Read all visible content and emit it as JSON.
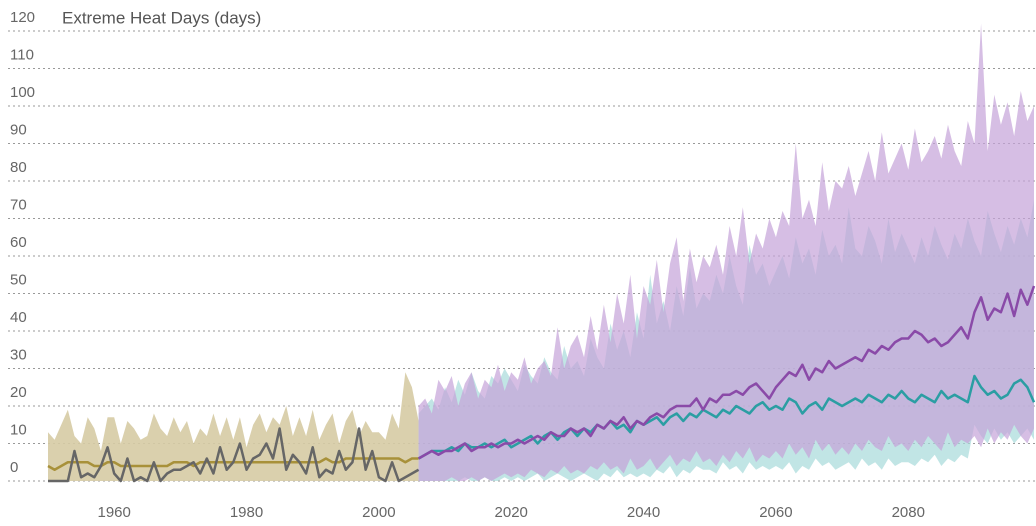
{
  "chart_data": {
    "type": "line",
    "title": "Extreme Heat Days (days)",
    "xlim": [
      1950,
      2099
    ],
    "xticks": [
      1960,
      1980,
      2000,
      2020,
      2040,
      2060,
      2080
    ],
    "ylim": [
      0,
      120
    ],
    "yticks": [
      0,
      10,
      20,
      30,
      40,
      50,
      60,
      70,
      80,
      90,
      100,
      110,
      120
    ],
    "grid": true,
    "series": [
      {
        "color": "#a8913a",
        "band_color": "#d6cba4",
        "x": [
          1950,
          1951,
          1952,
          1953,
          1954,
          1955,
          1956,
          1957,
          1958,
          1959,
          1960,
          1961,
          1962,
          1963,
          1964,
          1965,
          1966,
          1967,
          1968,
          1969,
          1970,
          1971,
          1972,
          1973,
          1974,
          1975,
          1976,
          1977,
          1978,
          1979,
          1980,
          1981,
          1982,
          1983,
          1984,
          1985,
          1986,
          1987,
          1988,
          1989,
          1990,
          1991,
          1992,
          1993,
          1994,
          1995,
          1996,
          1997,
          1998,
          1999,
          2000,
          2001,
          2002,
          2003,
          2004,
          2005,
          2006
        ],
        "values": [
          4,
          3,
          4,
          5,
          5,
          5,
          5,
          4,
          4,
          5,
          5,
          4,
          4,
          4,
          4,
          4,
          4,
          4,
          4,
          5,
          5,
          5,
          4,
          5,
          5,
          5,
          5,
          5,
          5,
          5,
          5,
          5,
          5,
          5,
          5,
          5,
          5,
          5,
          5,
          5,
          5,
          5,
          6,
          5,
          5,
          6,
          6,
          6,
          6,
          6,
          6,
          6,
          6,
          6,
          5,
          6,
          6
        ],
        "low": [
          0,
          0,
          0,
          0,
          0,
          0,
          0,
          0,
          0,
          0,
          0,
          0,
          0,
          0,
          0,
          0,
          0,
          0,
          0,
          0,
          0,
          0,
          0,
          0,
          0,
          0,
          0,
          0,
          0,
          0,
          0,
          0,
          0,
          0,
          0,
          0,
          0,
          0,
          0,
          0,
          0,
          0,
          0,
          0,
          0,
          0,
          0,
          0,
          0,
          0,
          0,
          0,
          0,
          0,
          0,
          0,
          0
        ],
        "high": [
          13,
          11,
          15,
          19,
          12,
          10,
          17,
          14,
          8,
          17,
          17,
          10,
          16,
          14,
          11,
          12,
          18,
          14,
          12,
          17,
          13,
          16,
          10,
          14,
          12,
          18,
          12,
          17,
          11,
          17,
          9,
          15,
          18,
          13,
          17,
          15,
          20,
          12,
          17,
          12,
          19,
          11,
          15,
          18,
          10,
          16,
          19,
          12,
          16,
          13,
          13,
          11,
          18,
          14,
          29,
          25,
          16
        ]
      },
      {
        "color": "#2b9ea3",
        "band_color": "#a6dada",
        "x": [
          2006,
          2007,
          2008,
          2009,
          2010,
          2011,
          2012,
          2013,
          2014,
          2015,
          2016,
          2017,
          2018,
          2019,
          2020,
          2021,
          2022,
          2023,
          2024,
          2025,
          2026,
          2027,
          2028,
          2029,
          2030,
          2031,
          2032,
          2033,
          2034,
          2035,
          2036,
          2037,
          2038,
          2039,
          2040,
          2041,
          2042,
          2043,
          2044,
          2045,
          2046,
          2047,
          2048,
          2049,
          2050,
          2051,
          2052,
          2053,
          2054,
          2055,
          2056,
          2057,
          2058,
          2059,
          2060,
          2061,
          2062,
          2063,
          2064,
          2065,
          2066,
          2067,
          2068,
          2069,
          2070,
          2071,
          2072,
          2073,
          2074,
          2075,
          2076,
          2077,
          2078,
          2079,
          2080,
          2081,
          2082,
          2083,
          2084,
          2085,
          2086,
          2087,
          2088,
          2089,
          2090,
          2091,
          2092,
          2093,
          2094,
          2095,
          2096,
          2097,
          2098,
          2099
        ],
        "values": [
          6,
          7,
          8,
          8,
          8,
          9,
          8,
          10,
          9,
          9,
          10,
          9,
          10,
          11,
          9,
          10,
          11,
          12,
          10,
          12,
          13,
          11,
          13,
          14,
          12,
          14,
          13,
          15,
          14,
          16,
          14,
          15,
          13,
          16,
          15,
          16,
          17,
          15,
          17,
          18,
          16,
          18,
          17,
          19,
          18,
          17,
          19,
          18,
          20,
          19,
          18,
          20,
          21,
          19,
          20,
          19,
          22,
          21,
          18,
          20,
          21,
          19,
          22,
          21,
          20,
          21,
          22,
          21,
          23,
          22,
          21,
          23,
          22,
          24,
          22,
          21,
          23,
          22,
          21,
          24,
          22,
          23,
          22,
          21,
          28,
          25,
          23,
          24,
          22,
          23,
          26,
          27,
          25,
          21
        ],
        "low": [
          0,
          0,
          0,
          0,
          0,
          0,
          0,
          1,
          0,
          0,
          1,
          0,
          0,
          1,
          0,
          1,
          0,
          1,
          2,
          0,
          1,
          2,
          1,
          0,
          1,
          2,
          1,
          0,
          2,
          1,
          3,
          1,
          2,
          1,
          2,
          1,
          3,
          2,
          4,
          1,
          3,
          2,
          4,
          3,
          3,
          2,
          5,
          3,
          4,
          2,
          5,
          3,
          4,
          3,
          4,
          3,
          5,
          2,
          4,
          3,
          6,
          4,
          5,
          3,
          4,
          5,
          3,
          6,
          4,
          5,
          3,
          6,
          4,
          5,
          5,
          4,
          6,
          5,
          7,
          4,
          6,
          5,
          7,
          6,
          15,
          12,
          10,
          14,
          11,
          13,
          10,
          12,
          14,
          11
        ],
        "high": [
          18,
          20,
          22,
          19,
          25,
          21,
          27,
          23,
          29,
          24,
          22,
          28,
          26,
          30,
          27,
          24,
          31,
          28,
          26,
          33,
          29,
          27,
          36,
          30,
          32,
          28,
          38,
          33,
          30,
          42,
          35,
          40,
          33,
          45,
          38,
          55,
          42,
          48,
          40,
          52,
          44,
          57,
          46,
          50,
          48,
          55,
          50,
          60,
          52,
          47,
          63,
          55,
          58,
          52,
          56,
          60,
          54,
          65,
          58,
          62,
          55,
          67,
          60,
          63,
          58,
          73,
          62,
          60,
          68,
          64,
          58,
          70,
          61,
          66,
          62,
          58,
          65,
          60,
          68,
          63,
          59,
          66,
          62,
          70,
          64,
          60,
          72,
          66,
          61,
          68,
          63,
          70,
          65,
          75
        ]
      },
      {
        "color": "#8a4aa8",
        "band_color": "#c4a3d8",
        "x": [
          2006,
          2007,
          2008,
          2009,
          2010,
          2011,
          2012,
          2013,
          2014,
          2015,
          2016,
          2017,
          2018,
          2019,
          2020,
          2021,
          2022,
          2023,
          2024,
          2025,
          2026,
          2027,
          2028,
          2029,
          2030,
          2031,
          2032,
          2033,
          2034,
          2035,
          2036,
          2037,
          2038,
          2039,
          2040,
          2041,
          2042,
          2043,
          2044,
          2045,
          2046,
          2047,
          2048,
          2049,
          2050,
          2051,
          2052,
          2053,
          2054,
          2055,
          2056,
          2057,
          2058,
          2059,
          2060,
          2061,
          2062,
          2063,
          2064,
          2065,
          2066,
          2067,
          2068,
          2069,
          2070,
          2071,
          2072,
          2073,
          2074,
          2075,
          2076,
          2077,
          2078,
          2079,
          2080,
          2081,
          2082,
          2083,
          2084,
          2085,
          2086,
          2087,
          2088,
          2089,
          2090,
          2091,
          2092,
          2093,
          2094,
          2095,
          2096,
          2097,
          2098,
          2099
        ],
        "values": [
          6,
          7,
          8,
          7,
          8,
          8,
          9,
          10,
          8,
          9,
          9,
          10,
          9,
          10,
          10,
          11,
          10,
          11,
          12,
          11,
          13,
          12,
          12,
          14,
          13,
          14,
          12,
          15,
          14,
          16,
          15,
          17,
          14,
          16,
          15,
          17,
          18,
          17,
          19,
          20,
          20,
          20,
          22,
          19,
          22,
          21,
          23,
          23,
          24,
          23,
          25,
          26,
          24,
          22,
          25,
          27,
          29,
          28,
          31,
          27,
          30,
          29,
          32,
          30,
          31,
          32,
          33,
          32,
          35,
          34,
          36,
          35,
          37,
          38,
          38,
          40,
          39,
          37,
          38,
          36,
          37,
          39,
          41,
          38,
          45,
          49,
          43,
          46,
          45,
          50,
          44,
          51,
          47,
          52
        ],
        "low": [
          0,
          0,
          0,
          0,
          0,
          1,
          0,
          0,
          1,
          0,
          1,
          0,
          1,
          2,
          1,
          2,
          1,
          3,
          2,
          1,
          3,
          2,
          4,
          2,
          3,
          2,
          4,
          3,
          5,
          3,
          4,
          2,
          6,
          3,
          4,
          6,
          3,
          5,
          7,
          4,
          6,
          5,
          8,
          5,
          6,
          4,
          7,
          5,
          8,
          6,
          9,
          5,
          7,
          6,
          8,
          6,
          10,
          7,
          9,
          6,
          11,
          8,
          10,
          7,
          9,
          7,
          10,
          8,
          11,
          9,
          8,
          12,
          9,
          10,
          8,
          11,
          9,
          12,
          10,
          8,
          13,
          9,
          11,
          10,
          12,
          9,
          14,
          10,
          13,
          11,
          15,
          12,
          10,
          14
        ],
        "high": [
          20,
          22,
          18,
          27,
          24,
          28,
          20,
          26,
          29,
          22,
          27,
          25,
          31,
          24,
          29,
          27,
          33,
          26,
          30,
          32,
          28,
          41,
          30,
          36,
          39,
          33,
          44,
          35,
          47,
          37,
          50,
          42,
          55,
          38,
          52,
          47,
          59,
          45,
          58,
          65,
          48,
          62,
          53,
          60,
          57,
          63,
          55,
          68,
          60,
          73,
          58,
          66,
          62,
          70,
          65,
          72,
          68,
          90,
          70,
          75,
          68,
          85,
          72,
          80,
          78,
          84,
          76,
          82,
          88,
          80,
          93,
          82,
          86,
          90,
          83,
          94,
          85,
          88,
          92,
          86,
          95,
          88,
          84,
          96,
          90,
          122,
          88,
          103,
          95,
          101,
          92,
          104,
          96,
          100
        ]
      },
      {
        "color": "#666666",
        "x": [
          1950,
          1951,
          1952,
          1953,
          1954,
          1955,
          1956,
          1957,
          1958,
          1959,
          1960,
          1961,
          1962,
          1963,
          1964,
          1965,
          1966,
          1967,
          1968,
          1969,
          1970,
          1971,
          1972,
          1973,
          1974,
          1975,
          1976,
          1977,
          1978,
          1979,
          1980,
          1981,
          1982,
          1983,
          1984,
          1985,
          1986,
          1987,
          1988,
          1989,
          1990,
          1991,
          1992,
          1993,
          1994,
          1995,
          1996,
          1997,
          1998,
          1999,
          2000,
          2001,
          2002,
          2003,
          2004,
          2005,
          2006
        ],
        "values": [
          0,
          0,
          0,
          0,
          8,
          1,
          2,
          1,
          4,
          9,
          2,
          0,
          6,
          0,
          1,
          0,
          5,
          0,
          2,
          3,
          3,
          4,
          5,
          2,
          6,
          2,
          9,
          3,
          5,
          10,
          3,
          6,
          7,
          10,
          6,
          14,
          3,
          7,
          5,
          2,
          9,
          1,
          3,
          2,
          8,
          3,
          5,
          14,
          3,
          8,
          1,
          0,
          5,
          0,
          1,
          2,
          3
        ]
      }
    ]
  }
}
